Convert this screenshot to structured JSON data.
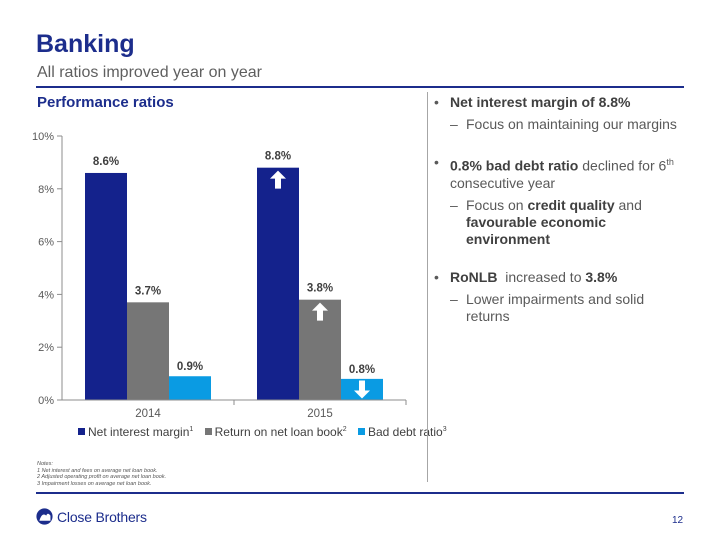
{
  "header": {
    "title": "Banking",
    "subtitle": "All ratios improved year on year"
  },
  "section_title": "Performance ratios",
  "chart_data": {
    "type": "bar",
    "categories": [
      "2014",
      "2015"
    ],
    "series": [
      {
        "name": "Net interest margin",
        "values": [
          8.6,
          8.8
        ],
        "labels": [
          "8.6%",
          "8.8%"
        ],
        "color": "#14228c",
        "sup": "1"
      },
      {
        "name": "Return on net loan book",
        "values": [
          3.7,
          3.8
        ],
        "labels": [
          "3.7%",
          "3.8%"
        ],
        "color": "#767676",
        "sup": "2"
      },
      {
        "name": "Bad debt ratio",
        "values": [
          0.9,
          0.8
        ],
        "labels": [
          "0.9%",
          "0.8%"
        ],
        "color": "#0a9be3",
        "sup": "3"
      }
    ],
    "ylim": [
      0,
      10
    ],
    "yticks": [
      0,
      2,
      4,
      6,
      8,
      10
    ],
    "ytick_labels": [
      "0%",
      "2%",
      "4%",
      "6%",
      "8%",
      "10%"
    ],
    "arrows_2015": [
      "up",
      "up",
      "down"
    ],
    "grid": false,
    "legend_position": "bottom"
  },
  "notes": {
    "heading": "Notes:",
    "items": [
      "1 Net interest and fees on average net loan book.",
      "2 Adjusted operating profit on average net loan book.",
      "3 Impairment losses on average net loan book."
    ]
  },
  "bullets": {
    "b1": {
      "bold": "Net interest margin of 8.8%",
      "sub": "Focus on maintaining our margins"
    },
    "b2": {
      "bold": "0.8% bad debt ratio",
      "text": " declined for 6",
      "sup": "th",
      "text2": " consecutive year",
      "sub_prefix": "Focus on ",
      "sub_bold1": "credit quality",
      "sub_mid": " and ",
      "sub_bold2": "favourable economic environment"
    },
    "b3": {
      "bold": "RoNLB",
      "text": "  increased to ",
      "bold2": "3.8%",
      "sub": "Lower impairments and solid returns"
    },
    "bullet_glyph": "•",
    "dash_glyph": "–"
  },
  "footer": {
    "logo_text": "Close Brothers",
    "page_number": "12"
  },
  "colors": {
    "brand": "#1c2d8c"
  }
}
